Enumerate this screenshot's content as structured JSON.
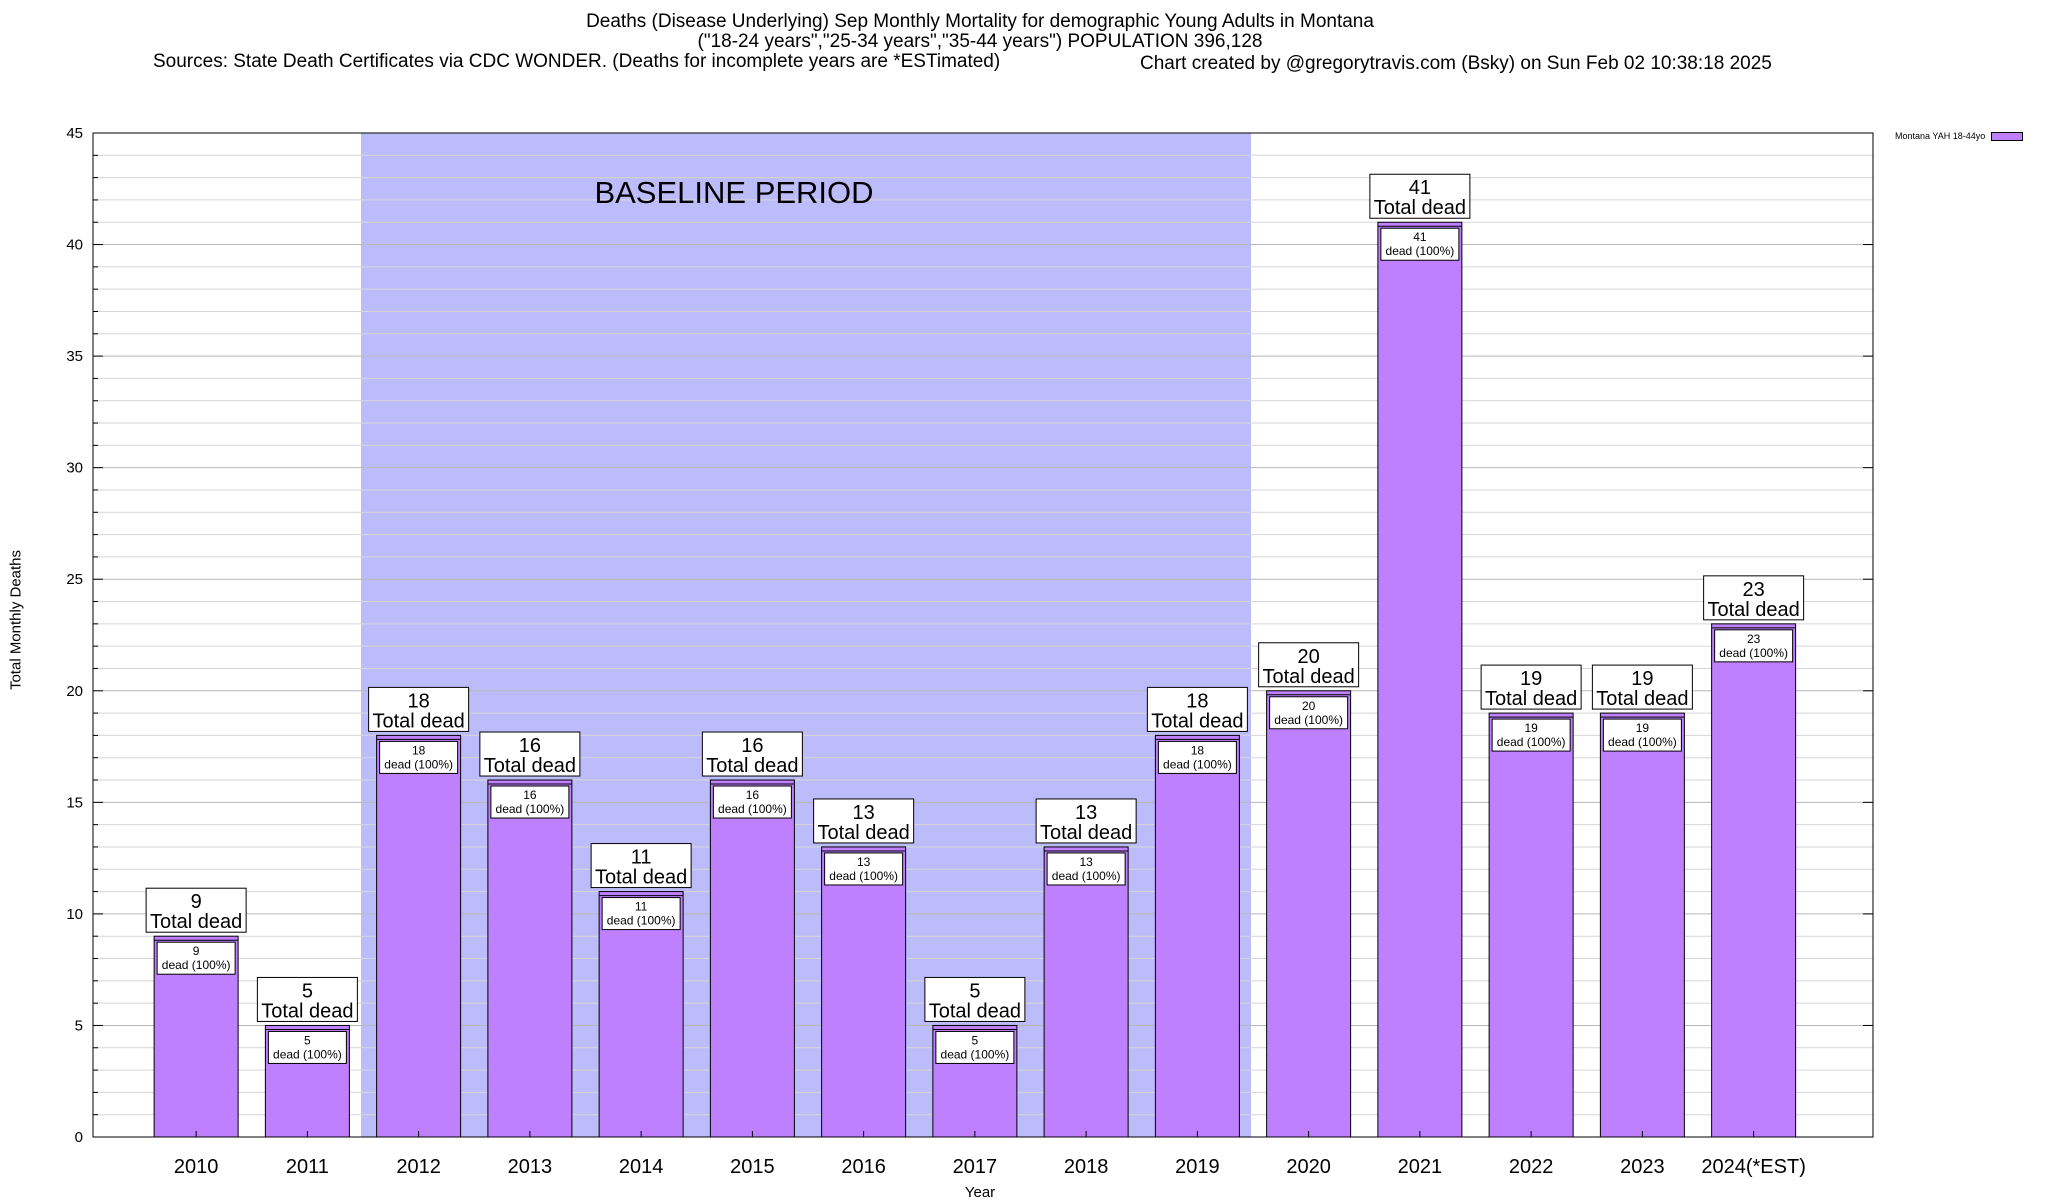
{
  "title_lines": [
    "Deaths (Disease Underlying) Sep Monthly Mortality for demographic Young Adults in Montana",
    "(\"18-24 years\",\"25-34 years\",\"35-44 years\") POPULATION 396,128",
    "Sources: State Death Certificates via CDC WONDER. (Deaths for incomplete years are *ESTimated)"
  ],
  "credit": "Chart created by @gregorytravis.com (Bsky) on Sun Feb 02 10:38:18 2025",
  "legend_label": "Montana YAH 18-44yo",
  "colors": {
    "bar": "#bf80ff",
    "baseline": "#bcbcfb",
    "bar_stroke": "#000000"
  },
  "chart_data": {
    "type": "bar",
    "title": "Deaths (Disease Underlying) Sep Monthly Mortality for demographic Young Adults in Montana",
    "xlabel": "Year",
    "ylabel": "Total Monthly Deaths",
    "ylim": [
      0,
      45
    ],
    "yticks": [
      0,
      5,
      10,
      15,
      20,
      25,
      30,
      35,
      40,
      45
    ],
    "grid": true,
    "legend_position": "top-right",
    "categories": [
      "2010",
      "2011",
      "2012",
      "2013",
      "2014",
      "2015",
      "2016",
      "2017",
      "2018",
      "2019",
      "2020",
      "2021",
      "2022",
      "2023",
      "2024(*EST)"
    ],
    "series": [
      {
        "name": "Montana YAH 18-44yo",
        "values": [
          9,
          5,
          18,
          16,
          11,
          16,
          13,
          5,
          13,
          18,
          20,
          41,
          19,
          19,
          23
        ]
      }
    ],
    "total_label_text": "Total dead",
    "inner_label_text": "dead (100%)",
    "annotation": {
      "text": "BASELINE PERIOD",
      "start_category": "2012",
      "end_category": "2019"
    }
  }
}
